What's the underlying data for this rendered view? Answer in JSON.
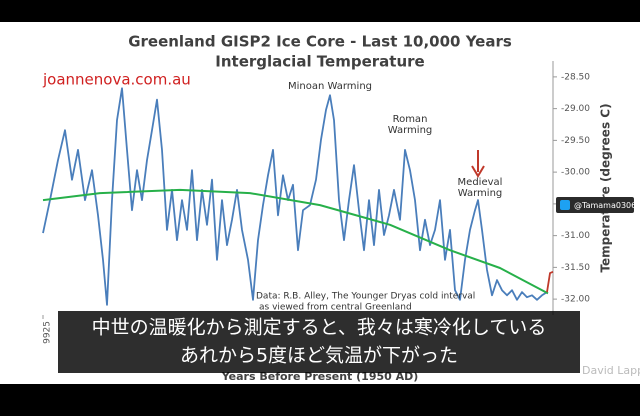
{
  "chart_data": {
    "type": "line",
    "title": "Greenland GISP2 Ice Core - Last 10,000 Years",
    "subtitle": "Interglacial Temperature",
    "watermark": "joannenova.com.au",
    "ylabel": "Temperature (degrees C)",
    "xlabel": "Years Before Present (1950 AD)",
    "xlim": [
      9925,
      97
    ],
    "xticks": [
      9925
    ],
    "ylim": [
      -32.25,
      -28.25
    ],
    "yticks": [
      {
        "value": -28.5,
        "label": "-28.50"
      },
      {
        "value": -29,
        "label": "-29.00"
      },
      {
        "value": -29.5,
        "label": "-29.50"
      },
      {
        "value": -30,
        "label": "-30.00"
      },
      {
        "value": -30.5,
        "label": "-30.50"
      },
      {
        "value": -31,
        "label": "-31.00"
      },
      {
        "value": -31.5,
        "label": "-31.50"
      },
      {
        "value": -32,
        "label": "-32.00"
      }
    ],
    "grid": false,
    "series": [
      {
        "color": "#4a7ebb",
        "x": [
          9925,
          9790,
          9636,
          9501,
          9366,
          9251,
          9116,
          8981,
          8865,
          8769,
          8692,
          8595,
          8499,
          8403,
          8306,
          8210,
          8114,
          8017,
          7921,
          7825,
          7728,
          7632,
          7536,
          7439,
          7343,
          7247,
          7150,
          7054,
          6958,
          6861,
          6765,
          6668,
          6572,
          6476,
          6379,
          6283,
          6187,
          6090,
          5975,
          5878,
          5782,
          5686,
          5589,
          5493,
          5397,
          5300,
          5204,
          5108,
          5011,
          4915,
          4780,
          4664,
          4568,
          4472,
          4394,
          4318,
          4221,
          4125,
          4029,
          3932,
          3836,
          3740,
          3643,
          3547,
          3451,
          3354,
          3258,
          3161,
          3046,
          2949,
          2853,
          2757,
          2660,
          2564,
          2468,
          2371,
          2275,
          2178,
          2082,
          1986,
          1889,
          1793,
          1697,
          1600,
          1543,
          1466,
          1369,
          1273,
          1176,
          1080,
          984,
          887,
          791,
          694,
          598,
          502,
          405,
          309,
          213
        ],
        "values": [
          -30.96,
          -30.44,
          -29.81,
          -29.34,
          -30.12,
          -29.65,
          -30.44,
          -29.97,
          -30.68,
          -31.38,
          -32.09,
          -30.44,
          -29.18,
          -28.68,
          -29.65,
          -30.6,
          -29.97,
          -30.44,
          -29.81,
          -29.34,
          -28.86,
          -29.65,
          -30.91,
          -30.28,
          -31.07,
          -30.44,
          -30.91,
          -29.97,
          -31.07,
          -30.28,
          -30.83,
          -30.12,
          -31.38,
          -30.44,
          -31.15,
          -30.75,
          -30.28,
          -30.91,
          -31.38,
          -32.01,
          -31.07,
          -30.52,
          -30.05,
          -29.65,
          -30.68,
          -30.05,
          -30.44,
          -30.2,
          -31.23,
          -30.6,
          -30.52,
          -30.12,
          -29.49,
          -29.02,
          -28.79,
          -29.18,
          -30.44,
          -31.07,
          -30.44,
          -29.89,
          -30.6,
          -31.23,
          -30.44,
          -31.15,
          -30.28,
          -30.99,
          -30.68,
          -30.28,
          -30.75,
          -29.65,
          -29.97,
          -30.44,
          -31.23,
          -30.75,
          -31.15,
          -30.91,
          -30.44,
          -31.38,
          -30.91,
          -31.86,
          -32.01,
          -31.38,
          -30.91,
          -30.6,
          -30.44,
          -30.91,
          -31.54,
          -31.94,
          -31.7,
          -31.86,
          -31.94,
          -31.86,
          -32.01,
          -31.89,
          -31.97,
          -31.94,
          -32.01,
          -31.94,
          -31.89
        ]
      },
      {
        "color": "#27b04a",
        "x": [
          9925,
          8826,
          7284,
          5936,
          4587,
          3238,
          2082,
          1118,
          194
        ],
        "values": [
          -30.44,
          -30.33,
          -30.28,
          -30.33,
          -30.52,
          -30.83,
          -31.23,
          -31.51,
          -31.91
        ]
      },
      {
        "color": "#c0392b",
        "x": [
          213,
          155,
          97
        ],
        "values": [
          -31.89,
          -31.59,
          -31.57
        ]
      }
    ],
    "annotations": [
      {
        "lines": [
          "Minoan Warming"
        ]
      },
      {
        "lines": [
          "Roman",
          "Warming"
        ]
      },
      {
        "lines": [
          "Medieval",
          "Warming"
        ]
      },
      {
        "lines": [
          "Data: R.B. Alley, The Younger Dryas cold interval",
          "as viewed from central Greenland"
        ]
      }
    ]
  },
  "overlay": {
    "twitter_handle": "@Tamama0306",
    "captions": [
      "中世の温暖化から測定すると、我々は寒冷化している",
      "あれから5度ほど気温が下がった"
    ],
    "credit": "David Lappi"
  }
}
